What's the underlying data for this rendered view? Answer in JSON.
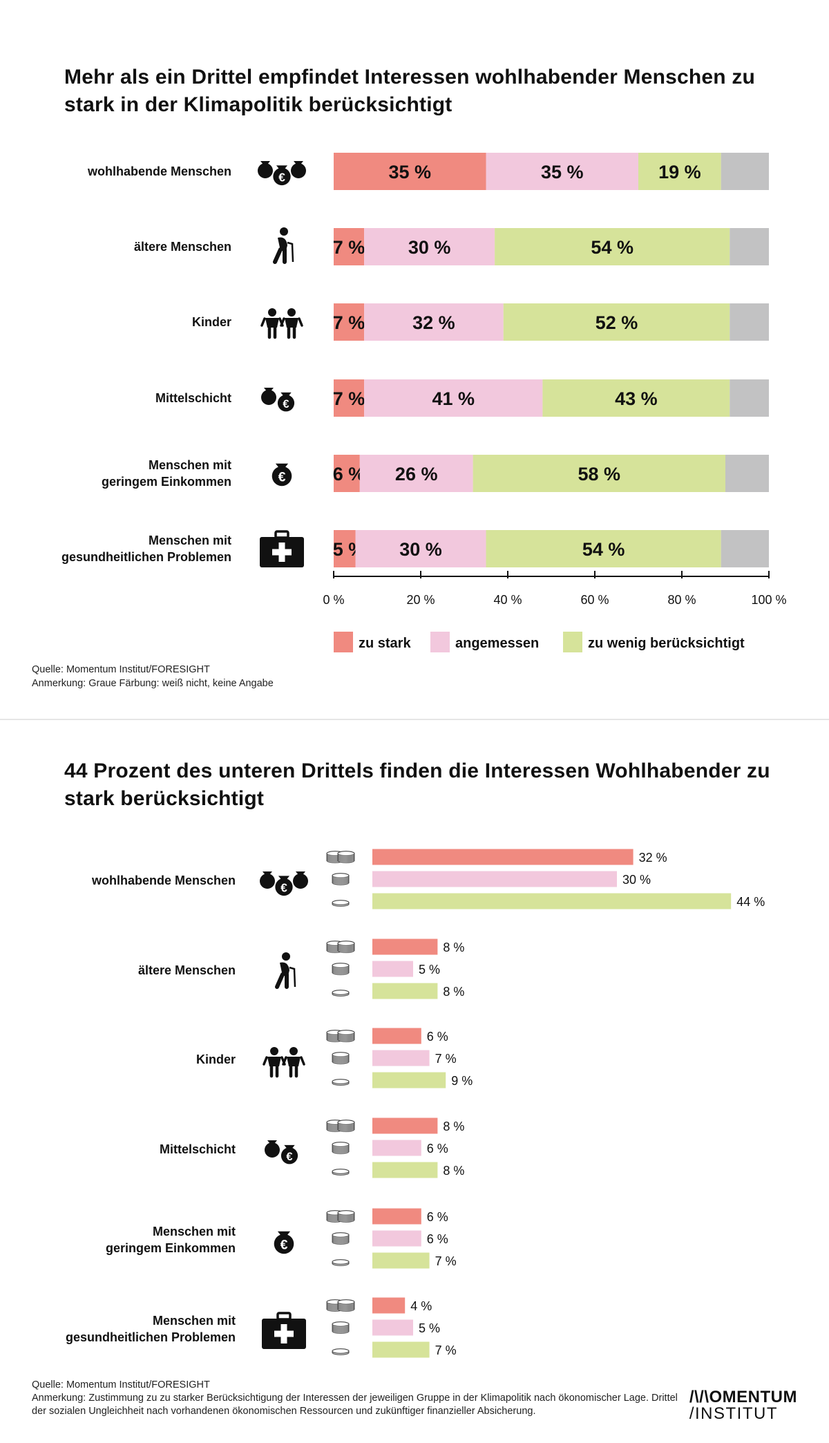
{
  "panel1": {
    "title": "Mehr als ein Drittel empfindet Interessen wohlhabender Menschen zu stark in der Klimapolitik berücksichtigt",
    "source": "Quelle: Momentum Institut/FORESIGHT",
    "note": "Anmerkung: Graue Färbung: weiß nicht, keine Angabe"
  },
  "panel2": {
    "title": "44 Prozent des unteren Drittels finden die Interessen Wohlhabender zu stark berücksichtigt",
    "source": "Quelle: Momentum Institut/FORESIGHT",
    "note": "Anmerkung: Zustimmung zu zu starker Berücksichtigung der Interessen der jeweiligen Gruppe in der Klimapolitik nach ökonomischer Lage. Drittel der sozialen Ungleichheit nach vorhandenen ökonomischen Ressourcen und zukünftiger finanzieller Absicherung."
  },
  "logo": {
    "line1": "/\\/\\OMENTUM",
    "line2": "/INSTITUT"
  },
  "colors": {
    "stark": "#f08a80",
    "angemessen": "#f2c8dd",
    "wenig": "#d6e39a",
    "unknown": "#c2c2c3",
    "text": "#111111"
  },
  "chart_data": [
    {
      "type": "bar",
      "orientation": "horizontal",
      "stacked": true,
      "title": "Mehr als ein Drittel empfindet Interessen wohlhabender Menschen zu stark in der Klimapolitik berücksichtigt",
      "categories": [
        [
          "wohlhabende Menschen"
        ],
        [
          "ältere Menschen"
        ],
        [
          "Kinder"
        ],
        [
          "Mittelschicht"
        ],
        [
          "Menschen mit",
          "geringem Einkommen"
        ],
        [
          "Menschen mit",
          "gesundheitlichen Problemen"
        ]
      ],
      "icons": [
        "money-bags-icon",
        "elderly-person-icon",
        "children-icon",
        "money-bags-icon",
        "money-bag-icon",
        "first-aid-kit-icon"
      ],
      "series": [
        {
          "name": "zu stark",
          "color": "#f08a80",
          "values": [
            35,
            7,
            7,
            7,
            6,
            5
          ],
          "labels": [
            "35 %",
            "7 %",
            "7 %",
            "7 %",
            "6 %",
            "5 %"
          ]
        },
        {
          "name": "angemessen",
          "color": "#f2c8dd",
          "values": [
            35,
            30,
            32,
            41,
            26,
            30
          ],
          "labels": [
            "35 %",
            "30 %",
            "32 %",
            "41 %",
            "26 %",
            "30 %"
          ]
        },
        {
          "name": "zu wenig berücksichtigt",
          "color": "#d6e39a",
          "values": [
            19,
            54,
            52,
            43,
            58,
            54
          ],
          "labels": [
            "19 %",
            "54 %",
            "52 %",
            "43 %",
            "58 %",
            "54 %"
          ]
        },
        {
          "name": "weiß nicht, keine Angabe",
          "color": "#c2c2c3",
          "values": [
            11,
            9,
            9,
            9,
            10,
            11
          ],
          "labels": []
        }
      ],
      "xlim": [
        0,
        100
      ],
      "xticks": [
        0,
        20,
        40,
        60,
        80,
        100
      ],
      "xtick_labels": [
        "0 %",
        "20 %",
        "40 %",
        "60 %",
        "80 %",
        "100 %"
      ],
      "legend": [
        "zu stark",
        "angemessen",
        "zu wenig berücksichtigt"
      ],
      "legend_position": "bottom"
    },
    {
      "type": "bar",
      "orientation": "horizontal",
      "grouped": true,
      "title": "44 Prozent des unteren Drittels finden die Interessen Wohlhabender zu stark berücksichtigt",
      "categories": [
        [
          "wohlhabende Menschen"
        ],
        [
          "ältere Menschen"
        ],
        [
          "Kinder"
        ],
        [
          "Mittelschicht"
        ],
        [
          "Menschen mit",
          "geringem Einkommen"
        ],
        [
          "Menschen mit",
          "gesundheitlichen Problemen"
        ]
      ],
      "icons": [
        "money-bags-icon",
        "elderly-person-icon",
        "children-icon",
        "money-bags-icon",
        "money-bag-icon",
        "first-aid-kit-icon"
      ],
      "series": [
        {
          "name": "oberes Drittel",
          "icon": "coins-stack-large-icon",
          "color": "#f08a80",
          "values": [
            32,
            8,
            6,
            8,
            6,
            4
          ],
          "labels": [
            "32 %",
            "8 %",
            "6 %",
            "8 %",
            "6 %",
            "4 %"
          ]
        },
        {
          "name": "mittleres Drittel",
          "icon": "coins-stack-medium-icon",
          "color": "#f2c8dd",
          "values": [
            30,
            5,
            7,
            6,
            6,
            5
          ],
          "labels": [
            "30 %",
            "5 %",
            "7 %",
            "6 %",
            "6 %",
            "5 %"
          ]
        },
        {
          "name": "unteres Drittel",
          "icon": "coin-single-icon",
          "color": "#d6e39a",
          "values": [
            44,
            8,
            9,
            8,
            7,
            7
          ],
          "labels": [
            "44 %",
            "8 %",
            "9 %",
            "8 %",
            "7 %",
            "7 %"
          ]
        }
      ]
    }
  ]
}
